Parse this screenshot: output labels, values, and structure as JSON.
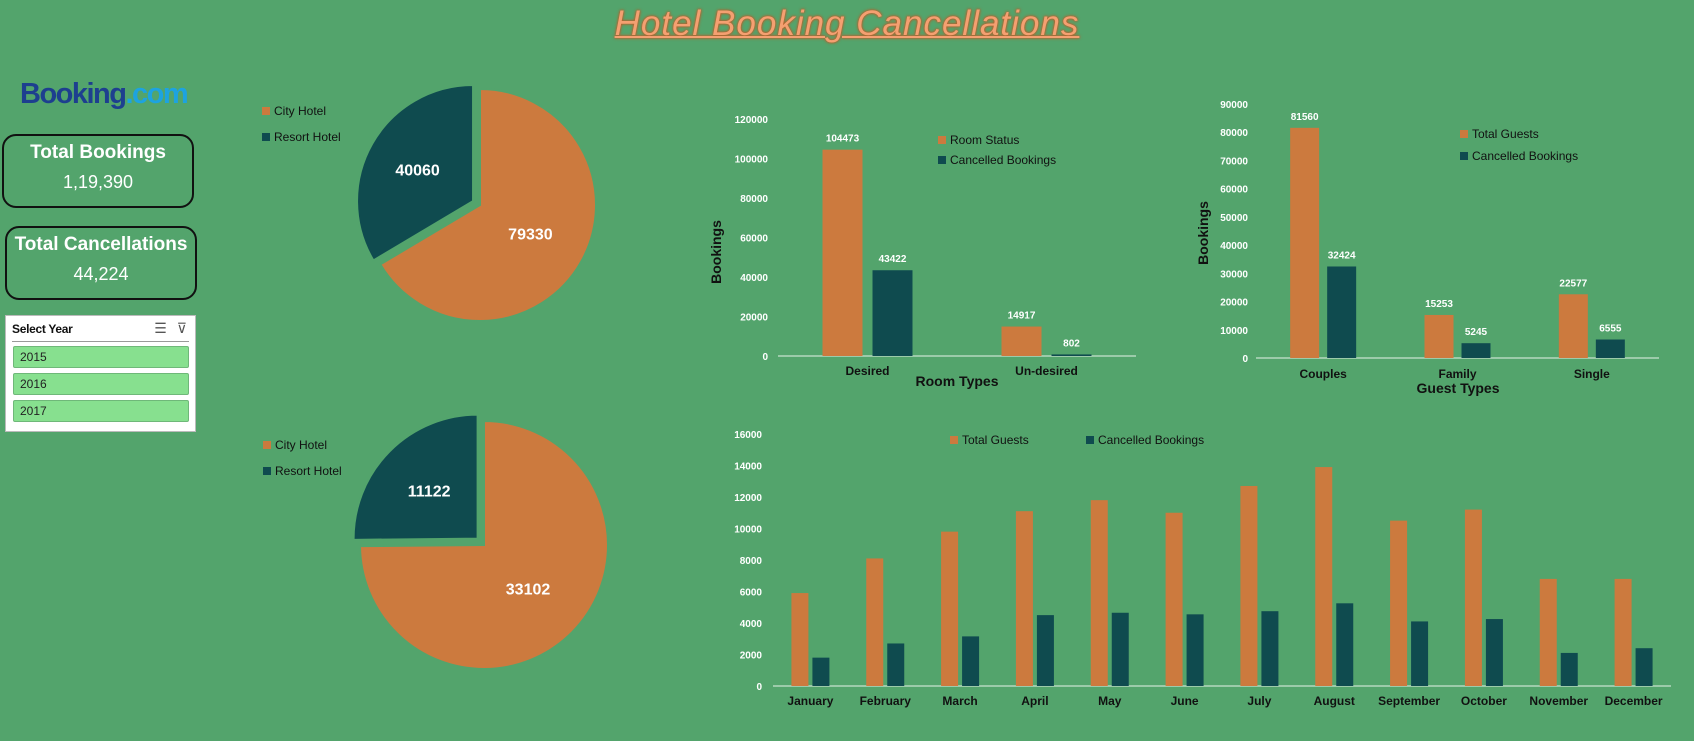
{
  "title": "Hotel Booking Cancellations",
  "logo": {
    "part1": "Booking",
    "part2": ".com"
  },
  "kpis": [
    {
      "label": "Total Bookings",
      "value": "1,19,390"
    },
    {
      "label": "Total Cancellations",
      "value": "44,224"
    }
  ],
  "slicer": {
    "header": "Select Year",
    "icons": [
      "multi-select-icon",
      "clear-filter-icon"
    ],
    "items": [
      "2015",
      "2016",
      "2017"
    ]
  },
  "colors": {
    "background": "#53a46c",
    "orange": "#cc7a3e",
    "teal": "#0f4b4f"
  },
  "chart_data": [
    {
      "type": "pie",
      "labels": [
        "City Hotel",
        "Resort Hotel"
      ],
      "values": [
        79330,
        40060
      ],
      "legend": "left"
    },
    {
      "type": "pie",
      "labels": [
        "City Hotel",
        "Resort Hotel"
      ],
      "values": [
        33102,
        11122
      ],
      "legend": "left"
    },
    {
      "type": "bar",
      "categories": [
        "Desired",
        "Un-desired"
      ],
      "series": [
        {
          "name": "Room Status",
          "values": [
            104473,
            14917
          ]
        },
        {
          "name": "Cancelled Bookings",
          "values": [
            43422,
            802
          ]
        }
      ],
      "xlabel": "Room Types",
      "ylabel": "Bookings",
      "ylim": [
        0,
        120000
      ],
      "yticks": [
        "0",
        "20000",
        "40000",
        "60000",
        "80000",
        "100000",
        "120000"
      ],
      "legend": "top-right"
    },
    {
      "type": "bar",
      "categories": [
        "Couples",
        "Family",
        "Single"
      ],
      "series": [
        {
          "name": "Total Guests",
          "values": [
            81560,
            15253,
            22577
          ]
        },
        {
          "name": "Cancelled Bookings",
          "values": [
            32424,
            5245,
            6555
          ]
        }
      ],
      "xlabel": "Guest Types",
      "ylabel": "Bookings",
      "ylim": [
        0,
        90000
      ],
      "yticks": [
        "0",
        "10000",
        "20000",
        "30000",
        "40000",
        "50000",
        "60000",
        "70000",
        "80000",
        "90000"
      ],
      "legend": "top-right"
    },
    {
      "type": "bar",
      "categories": [
        "January",
        "February",
        "March",
        "April",
        "May",
        "June",
        "July",
        "August",
        "September",
        "October",
        "November",
        "December"
      ],
      "series": [
        {
          "name": "Total Guests",
          "values": [
            5900,
            8100,
            9800,
            11100,
            11800,
            11000,
            12700,
            13900,
            10500,
            11200,
            6800,
            6800
          ]
        },
        {
          "name": "Cancelled Bookings",
          "values": [
            1800,
            2700,
            3150,
            4500,
            4650,
            4550,
            4750,
            5250,
            4100,
            4250,
            2100,
            2400
          ]
        }
      ],
      "xlabel": "",
      "ylabel": "",
      "ylim": [
        0,
        16000
      ],
      "yticks": [
        "0",
        "2000",
        "4000",
        "6000",
        "8000",
        "10000",
        "12000",
        "14000",
        "16000"
      ],
      "legend": "top"
    }
  ]
}
